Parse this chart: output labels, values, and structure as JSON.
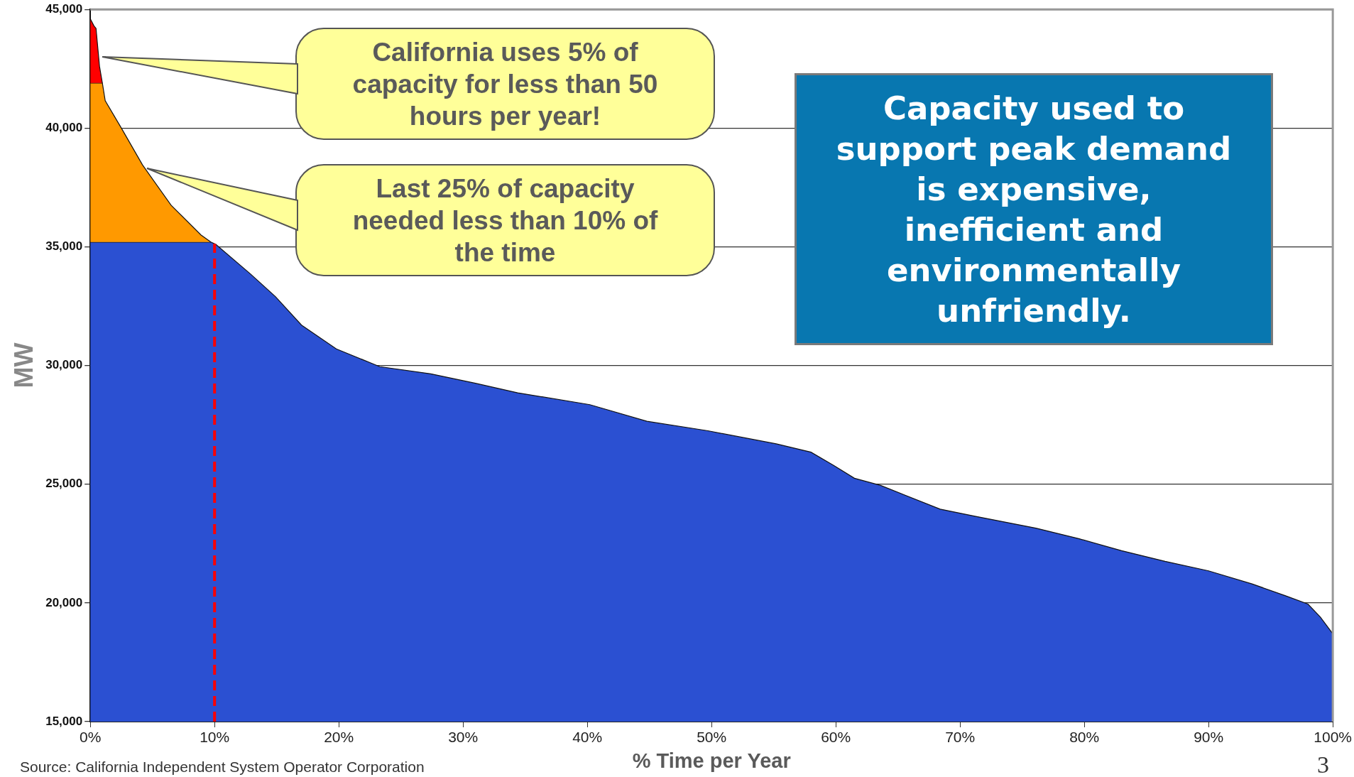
{
  "chart_data": {
    "type": "area",
    "xlabel": "% Time per Year",
    "ylabel": "MW",
    "xlim": [
      0,
      100
    ],
    "ylim": [
      15000,
      45000
    ],
    "xticks": [
      {
        "value": 0,
        "label": "0%"
      },
      {
        "value": 10,
        "label": "10%"
      },
      {
        "value": 20,
        "label": "20%"
      },
      {
        "value": 30,
        "label": "30%"
      },
      {
        "value": 40,
        "label": "40%"
      },
      {
        "value": 50,
        "label": "50%"
      },
      {
        "value": 60,
        "label": "60%"
      },
      {
        "value": 70,
        "label": "70%"
      },
      {
        "value": 80,
        "label": "80%"
      },
      {
        "value": 90,
        "label": "90%"
      },
      {
        "value": 100,
        "label": "100%"
      }
    ],
    "yticks": [
      {
        "value": 15000,
        "label": "15,000"
      },
      {
        "value": 20000,
        "label": "20,000"
      },
      {
        "value": 25000,
        "label": "25,000"
      },
      {
        "value": 30000,
        "label": "30,000"
      },
      {
        "value": 35000,
        "label": "35,000"
      },
      {
        "value": 40000,
        "label": "40,000"
      },
      {
        "value": 45000,
        "label": "45,000"
      }
    ],
    "grid": "y",
    "marker": "none",
    "series": [
      {
        "color": "#ff0000",
        "x": [
          0,
          0.3,
          0.46,
          0.74,
          0.97
        ],
        "values": [
          44600,
          44300,
          44200,
          42600,
          41900
        ]
      },
      {
        "color": "#ff9900",
        "x": [
          0,
          0.97,
          1.2,
          2.5,
          4.2,
          6.5,
          8.9,
          9.7
        ],
        "values": [
          41900,
          41900,
          41150,
          40000,
          38450,
          36750,
          35500,
          35200
        ]
      },
      {
        "color": "#2b50d2",
        "x": [
          0,
          9.7,
          10.1,
          12.9,
          14.9,
          17,
          19.8,
          23.3,
          27.4,
          31,
          34.4,
          40.2,
          44.8,
          49.7,
          55.2,
          58,
          59.8,
          61.5,
          63.6,
          68.4,
          71.2,
          76.1,
          79.6,
          83,
          86.5,
          90,
          93.5,
          96.2,
          98,
          99,
          100
        ],
        "values": [
          35200,
          35200,
          35100,
          33850,
          32900,
          31700,
          30700,
          29950,
          29650,
          29250,
          28850,
          28350,
          27650,
          27250,
          26700,
          26350,
          25800,
          25250,
          24950,
          23950,
          23650,
          23150,
          22700,
          22200,
          21750,
          21350,
          20800,
          20300,
          19950,
          19400,
          18700
        ]
      }
    ],
    "ref_lines": [
      {
        "axis": "x",
        "value": 10,
        "color": "#ff0000",
        "line_style": "dashed"
      }
    ],
    "annotations": [
      "California uses 5% of capacity for less than 50 hours per year!",
      "Last 25% of capacity needed less than 10% of the time",
      "Capacity used to support peak demand is expensive, inefficient and environmentally unfriendly.",
      "Source: California Independent System Operator Corporation",
      "3"
    ]
  }
}
